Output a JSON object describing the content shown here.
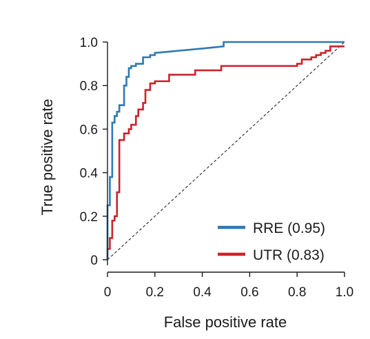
{
  "chart_data": {
    "type": "line",
    "xlabel": "False positive rate",
    "ylabel": "True positive rate",
    "xlim": [
      0,
      1
    ],
    "ylim": [
      0,
      1
    ],
    "x_ticks": [
      {
        "value": 0,
        "label": "0"
      },
      {
        "value": 0.2,
        "label": "0.2"
      },
      {
        "value": 0.4,
        "label": "0.4"
      },
      {
        "value": 0.6,
        "label": "0.6"
      },
      {
        "value": 0.8,
        "label": "0.8"
      },
      {
        "value": 1.0,
        "label": "1.0"
      }
    ],
    "y_ticks": [
      {
        "value": 0,
        "label": "0"
      },
      {
        "value": 0.2,
        "label": "0.2"
      },
      {
        "value": 0.4,
        "label": "0.4"
      },
      {
        "value": 0.6,
        "label": "0.6"
      },
      {
        "value": 0.8,
        "label": "0.8"
      },
      {
        "value": 1.0,
        "label": "1.0"
      }
    ],
    "grid": false,
    "legend_position": "bottom-right",
    "diagonal_reference": {
      "x": [
        0,
        1
      ],
      "y": [
        0,
        1
      ],
      "color": "#222222",
      "style": "dashed"
    },
    "series": [
      {
        "name": "RRE (0.95)",
        "color": "#2f78b4",
        "x": [
          0,
          0,
          0.01,
          0.01,
          0.02,
          0.02,
          0.03,
          0.03,
          0.04,
          0.04,
          0.05,
          0.05,
          0.07,
          0.07,
          0.08,
          0.08,
          0.09,
          0.09,
          0.1,
          0.1,
          0.12,
          0.12,
          0.15,
          0.15,
          0.18,
          0.18,
          0.2,
          0.2,
          0.3,
          0.4,
          0.49,
          0.49,
          0.75,
          1.0
        ],
        "y": [
          0,
          0.25,
          0.25,
          0.38,
          0.38,
          0.63,
          0.63,
          0.66,
          0.66,
          0.68,
          0.68,
          0.71,
          0.71,
          0.8,
          0.8,
          0.84,
          0.84,
          0.88,
          0.88,
          0.89,
          0.89,
          0.9,
          0.9,
          0.93,
          0.93,
          0.94,
          0.94,
          0.95,
          0.96,
          0.97,
          0.98,
          1.0,
          1.0,
          1.0
        ]
      },
      {
        "name": "UTR (0.83)",
        "color": "#cc2229",
        "x": [
          0,
          0,
          0.01,
          0.01,
          0.02,
          0.02,
          0.03,
          0.03,
          0.04,
          0.04,
          0.05,
          0.05,
          0.07,
          0.07,
          0.09,
          0.09,
          0.1,
          0.1,
          0.12,
          0.12,
          0.13,
          0.13,
          0.15,
          0.15,
          0.16,
          0.16,
          0.18,
          0.18,
          0.2,
          0.2,
          0.26,
          0.26,
          0.37,
          0.37,
          0.48,
          0.48,
          0.8,
          0.8,
          0.82,
          0.82,
          0.86,
          0.86,
          0.88,
          0.88,
          0.9,
          0.9,
          0.92,
          0.92,
          0.94,
          0.94,
          0.96,
          0.96,
          1.0
        ],
        "y": [
          0,
          0.05,
          0.05,
          0.1,
          0.1,
          0.18,
          0.18,
          0.2,
          0.2,
          0.31,
          0.31,
          0.55,
          0.55,
          0.58,
          0.58,
          0.6,
          0.6,
          0.62,
          0.62,
          0.66,
          0.66,
          0.69,
          0.69,
          0.72,
          0.72,
          0.78,
          0.78,
          0.81,
          0.81,
          0.82,
          0.82,
          0.85,
          0.85,
          0.87,
          0.87,
          0.89,
          0.89,
          0.9,
          0.9,
          0.92,
          0.92,
          0.93,
          0.93,
          0.94,
          0.94,
          0.95,
          0.95,
          0.96,
          0.96,
          0.98,
          0.98,
          0.98,
          0.98
        ]
      }
    ]
  }
}
